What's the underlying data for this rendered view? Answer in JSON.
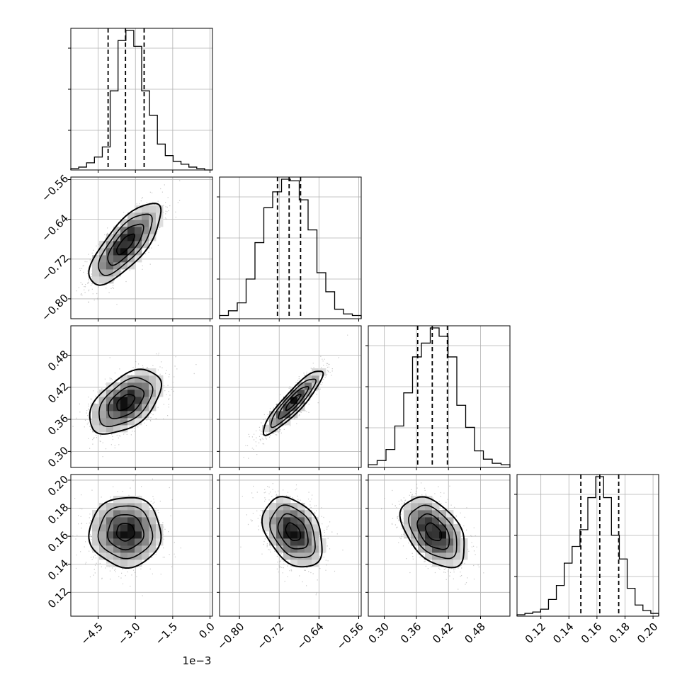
{
  "chart_data": {
    "type": "corner",
    "grid": true,
    "parameters": [
      {
        "range": [
          -5.6,
          0.1
        ],
        "ticks": [
          -4.5,
          -3.0,
          -1.5,
          0.0
        ],
        "tick_labels": [
          "−4.5",
          "−3.0",
          "−1.5",
          "0.0"
        ],
        "offset_text": "1e−3"
      },
      {
        "range": [
          -0.84,
          -0.555
        ],
        "ticks": [
          -0.8,
          -0.72,
          -0.64,
          -0.56
        ],
        "tick_labels": [
          "−0.80",
          "−0.72",
          "−0.64",
          "−0.56"
        ]
      },
      {
        "range": [
          0.27,
          0.535
        ],
        "ticks": [
          0.3,
          0.36,
          0.42,
          0.48
        ],
        "tick_labels": [
          "0.30",
          "0.36",
          "0.42",
          "0.48"
        ]
      },
      {
        "range": [
          0.103,
          0.204
        ],
        "ticks": [
          0.12,
          0.14,
          0.16,
          0.18,
          0.2
        ],
        "tick_labels": [
          "0.12",
          "0.14",
          "0.16",
          "0.18",
          "0.20"
        ]
      }
    ],
    "histograms": [
      {
        "counts": [
          1,
          2,
          5,
          9,
          16,
          55,
          90,
          97,
          86,
          55,
          38,
          18,
          10,
          6,
          4,
          2,
          1,
          0
        ],
        "quantiles": [
          -4.1,
          -3.4,
          -2.65
        ]
      },
      {
        "counts": [
          2,
          5,
          10,
          25,
          48,
          70,
          80,
          88,
          87,
          75,
          56,
          29,
          17,
          6,
          3,
          2
        ],
        "quantiles": [
          -0.7235,
          -0.7,
          -0.677
        ]
      },
      {
        "counts": [
          2,
          5,
          13,
          30,
          54,
          80,
          90,
          101,
          95,
          80,
          45,
          29,
          12,
          6,
          3,
          2
        ],
        "quantiles": [
          0.3624,
          0.3897,
          0.418
        ]
      },
      {
        "counts": [
          1,
          2,
          3,
          5,
          12,
          22,
          38,
          50,
          62,
          85,
          100,
          85,
          58,
          41,
          20,
          8,
          4,
          2
        ],
        "quantiles": [
          0.1485,
          0.162,
          0.1755
        ]
      }
    ],
    "correlations": [
      {
        "pair": [
          0,
          1
        ],
        "center": [
          -3.4,
          -0.69
        ],
        "sigma": [
          0.72,
          0.041
        ],
        "rho": 0.75
      },
      {
        "pair": [
          0,
          2
        ],
        "center": [
          -3.4,
          0.392
        ],
        "sigma": [
          0.72,
          0.03
        ],
        "rho": 0.5
      },
      {
        "pair": [
          1,
          2
        ],
        "center": [
          -0.692,
          0.392
        ],
        "sigma": [
          0.03,
          0.03
        ],
        "rho": 0.9
      },
      {
        "pair": [
          0,
          3
        ],
        "center": [
          -3.4,
          0.163
        ],
        "sigma": [
          0.72,
          0.0125
        ],
        "rho": 0.0
      },
      {
        "pair": [
          1,
          3
        ],
        "center": [
          -0.692,
          0.163
        ],
        "sigma": [
          0.03,
          0.0125
        ],
        "rho": -0.35
      },
      {
        "pair": [
          2,
          3
        ],
        "center": [
          0.392,
          0.163
        ],
        "sigma": [
          0.03,
          0.0125
        ],
        "rho": -0.45
      }
    ],
    "contour_levels_sigma": [
      0.5,
      1.0,
      1.5,
      2.0
    ]
  }
}
